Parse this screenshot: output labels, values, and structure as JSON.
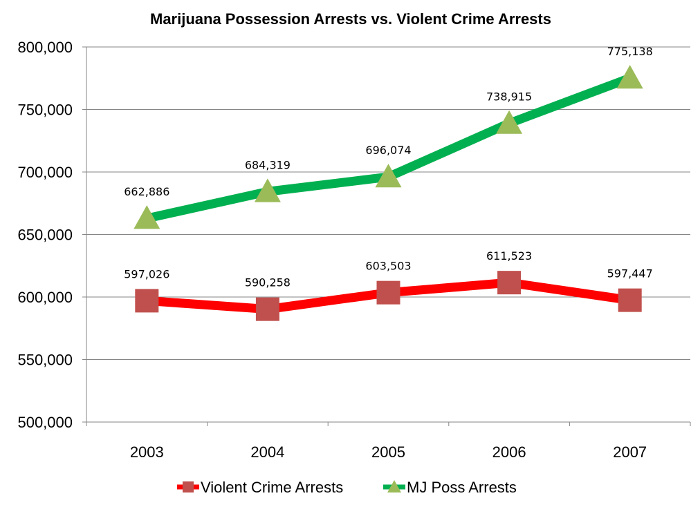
{
  "chart_data": {
    "type": "line",
    "title": "Marijuana Possession Arrests vs. Violent Crime Arrests",
    "xlabel": "",
    "ylabel": "",
    "categories": [
      "2003",
      "2004",
      "2005",
      "2006",
      "2007"
    ],
    "ylim": [
      500000,
      800000
    ],
    "yticks": [
      500000,
      550000,
      600000,
      650000,
      700000,
      750000,
      800000
    ],
    "ytick_labels": [
      "500,000",
      "550,000",
      "600,000",
      "650,000",
      "700,000",
      "750,000",
      "800,000"
    ],
    "grid": true,
    "legend_position": "bottom",
    "series": [
      {
        "name": "Violent Crime Arrests",
        "values": [
          597026,
          590258,
          603503,
          611523,
          597447
        ],
        "labels": [
          "597,026",
          "590,258",
          "603,503",
          "611,523",
          "597,447"
        ],
        "line_color": "#ff0000",
        "marker": "square",
        "marker_color": "#c0504d"
      },
      {
        "name": "MJ Poss Arrests",
        "values": [
          662886,
          684319,
          696074,
          738915,
          775138
        ],
        "labels": [
          "662,886",
          "684,319",
          "696,074",
          "738,915",
          "775,138"
        ],
        "line_color": "#00b050",
        "marker": "triangle",
        "marker_color": "#9bbb59"
      }
    ]
  }
}
